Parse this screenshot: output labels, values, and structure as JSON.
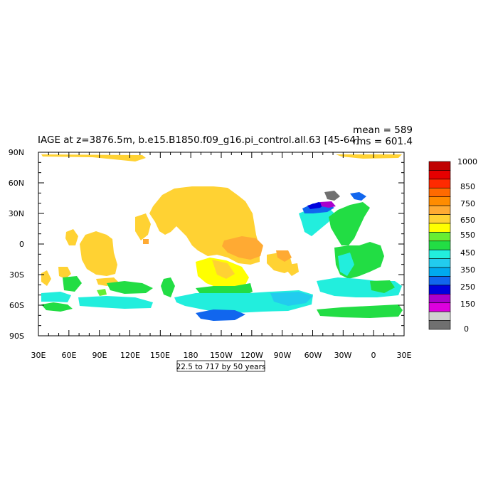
{
  "title": "IAGE at z=3876.5m, b.e15.B1850.f09_g16.pi_control.all.63 [45-64]",
  "stats": {
    "mean": "mean = 589",
    "rms": "rms = 601.4"
  },
  "caption": "22.5 to 717 by 50 years",
  "axes": {
    "y_labels": [
      "90N",
      "60N",
      "30N",
      "0",
      "30S",
      "60S",
      "90S"
    ],
    "x_labels": [
      "30E",
      "60E",
      "90E",
      "120E",
      "150E",
      "180",
      "150W",
      "120W",
      "90W",
      "60W",
      "30W",
      "0",
      "30E"
    ]
  },
  "colorbar": {
    "labels": [
      "1000",
      "850",
      "750",
      "650",
      "550",
      "450",
      "350",
      "250",
      "150",
      "0"
    ],
    "colors": [
      "#c00000",
      "#e60000",
      "#ff2a00",
      "#ff6a00",
      "#ff8c00",
      "#ffaa33",
      "#ffd233",
      "#ffff00",
      "#66ee33",
      "#22dd44",
      "#22eedd",
      "#22ccee",
      "#00aaee",
      "#1166ee",
      "#0000dd",
      "#aa00cc",
      "#dd00dd",
      "#d0d0d0",
      "#707070"
    ]
  },
  "colors": {
    "orange_light": "#ffd233",
    "orange": "#ffaa33",
    "yellow": "#ffff00",
    "green": "#22dd44",
    "lime": "#66ee33",
    "cyan": "#22eedd",
    "sky": "#22ccee",
    "blue": "#1166ee",
    "navy": "#0000dd",
    "purple": "#aa00cc",
    "gray": "#707070"
  }
}
